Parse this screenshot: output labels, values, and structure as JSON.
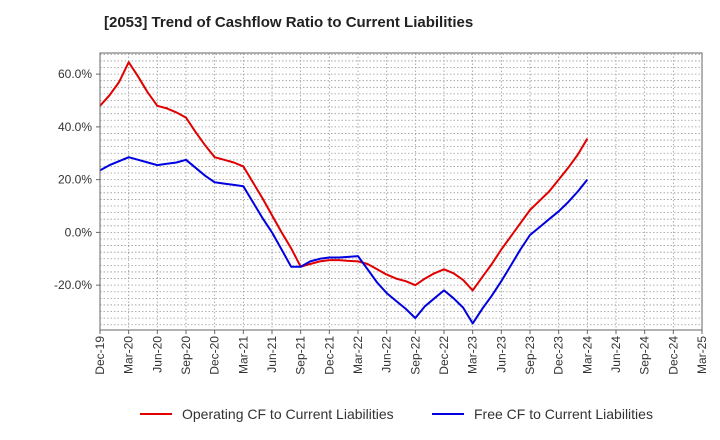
{
  "chart_data": {
    "type": "line",
    "title": "[2053]  Trend of Cashflow Ratio to Current Liabilities",
    "xlabel": "",
    "ylabel": "",
    "x_tick_labels": [
      "Dec-19",
      "Mar-20",
      "Jun-20",
      "Sep-20",
      "Dec-20",
      "Mar-21",
      "Jun-21",
      "Sep-21",
      "Dec-21",
      "Mar-22",
      "Jun-22",
      "Sep-22",
      "Dec-22",
      "Mar-23",
      "Jun-23",
      "Sep-23",
      "Dec-23",
      "Mar-24",
      "Jun-24",
      "Sep-24",
      "Dec-24",
      "Mar-25"
    ],
    "y_tick_labels": [
      "60.0%",
      "40.0%",
      "20.0%",
      "0.0%",
      "-20.0%"
    ],
    "y_ticks": [
      60,
      40,
      20,
      0,
      -20
    ],
    "ylim": [
      -37,
      68
    ],
    "grid": true,
    "legend_position": "bottom",
    "series": [
      {
        "name": "Operating CF to Current Liabilities",
        "color": "#e00000",
        "x": [
          "Dec-19",
          "Jan-20",
          "Feb-20",
          "Mar-20",
          "Apr-20",
          "May-20",
          "Jun-20",
          "Jul-20",
          "Aug-20",
          "Sep-20",
          "Oct-20",
          "Nov-20",
          "Dec-20",
          "Jan-21",
          "Feb-21",
          "Mar-21",
          "Apr-21",
          "May-21",
          "Jun-21",
          "Jul-21",
          "Aug-21",
          "Sep-21",
          "Oct-21",
          "Nov-21",
          "Dec-21",
          "Jan-22",
          "Feb-22",
          "Mar-22",
          "Apr-22",
          "May-22",
          "Jun-22",
          "Jul-22",
          "Aug-22",
          "Sep-22",
          "Oct-22",
          "Nov-22",
          "Dec-22",
          "Jan-23",
          "Feb-23",
          "Mar-23",
          "Apr-23",
          "May-23",
          "Jun-23",
          "Jul-23",
          "Aug-23",
          "Sep-23",
          "Oct-23",
          "Nov-23",
          "Dec-23",
          "Jan-24",
          "Feb-24",
          "Mar-24"
        ],
        "values": [
          48,
          52,
          57,
          64.5,
          59,
          53,
          48,
          47,
          45.5,
          43.5,
          38,
          33,
          28.5,
          27.5,
          26.5,
          25,
          19,
          13,
          6.5,
          0,
          -6,
          -13,
          -12,
          -11,
          -10.5,
          -10.5,
          -10.8,
          -11,
          -12,
          -14,
          -16,
          -17.5,
          -18.5,
          -20,
          -17.5,
          -15.5,
          -14,
          -15.5,
          -18,
          -22,
          -17,
          -12,
          -6.5,
          -1.5,
          3.5,
          8.5,
          12,
          15.5,
          20,
          24.5,
          29.5,
          35.5
        ]
      },
      {
        "name": "Free CF to Current Liabilities",
        "color": "#0000e0",
        "x": [
          "Dec-19",
          "Jan-20",
          "Feb-20",
          "Mar-20",
          "Apr-20",
          "May-20",
          "Jun-20",
          "Jul-20",
          "Aug-20",
          "Sep-20",
          "Oct-20",
          "Nov-20",
          "Dec-20",
          "Jan-21",
          "Feb-21",
          "Mar-21",
          "Apr-21",
          "May-21",
          "Jun-21",
          "Jul-21",
          "Aug-21",
          "Sep-21",
          "Oct-21",
          "Nov-21",
          "Dec-21",
          "Jan-22",
          "Feb-22",
          "Mar-22",
          "Apr-22",
          "May-22",
          "Jun-22",
          "Jul-22",
          "Aug-22",
          "Sep-22",
          "Oct-22",
          "Nov-22",
          "Dec-22",
          "Jan-23",
          "Feb-23",
          "Mar-23",
          "Apr-23",
          "May-23",
          "Jun-23",
          "Jul-23",
          "Aug-23",
          "Sep-23",
          "Oct-23",
          "Nov-23",
          "Dec-23",
          "Jan-24",
          "Feb-24",
          "Mar-24"
        ],
        "values": [
          23.5,
          25.5,
          27,
          28.5,
          27.5,
          26.5,
          25.5,
          26,
          26.5,
          27.5,
          24.5,
          21.5,
          19,
          18.5,
          18,
          17.5,
          11.5,
          5.5,
          0,
          -6.5,
          -13,
          -13,
          -11,
          -10,
          -9.5,
          -9.5,
          -9.3,
          -9,
          -14,
          -19,
          -23,
          -26,
          -29,
          -32.5,
          -28,
          -25,
          -22,
          -25,
          -28.5,
          -34.5,
          -29,
          -24,
          -18.5,
          -12.5,
          -6.5,
          -1,
          2,
          5,
          8,
          11.5,
          15.5,
          20
        ]
      }
    ]
  }
}
